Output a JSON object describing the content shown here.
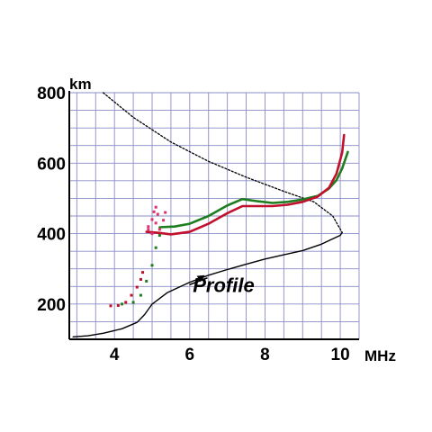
{
  "chart_data": {
    "type": "line",
    "title": "",
    "xlabel": "",
    "ylabel": "",
    "x_unit": "MHz",
    "y_unit": "km",
    "xlim": [
      2.8,
      10.5
    ],
    "ylim": [
      100,
      800
    ],
    "x_ticks": [
      4,
      6,
      8,
      10
    ],
    "y_ticks": [
      200,
      400,
      600,
      800
    ],
    "grid": true,
    "series": [
      {
        "color": "#000000",
        "style": "solid",
        "points": [
          [
            2.9,
            107
          ],
          [
            3.3,
            110
          ],
          [
            3.7,
            117
          ],
          [
            4.2,
            130
          ],
          [
            4.6,
            148
          ],
          [
            4.8,
            170
          ],
          [
            5.0,
            200
          ],
          [
            5.4,
            232
          ],
          [
            6.0,
            262
          ],
          [
            6.5,
            282
          ],
          [
            7.0,
            298
          ],
          [
            7.5,
            313
          ],
          [
            8.0,
            328
          ],
          [
            8.5,
            340
          ],
          [
            9.0,
            352
          ],
          [
            9.5,
            370
          ],
          [
            9.8,
            385
          ],
          [
            10.0,
            395
          ],
          [
            10.05,
            403
          ]
        ]
      },
      {
        "color": "#000000",
        "style": "dotted",
        "points": [
          [
            3.7,
            800
          ],
          [
            4.5,
            730
          ],
          [
            5.5,
            660
          ],
          [
            6.5,
            605
          ],
          [
            7.5,
            560
          ],
          [
            8.5,
            520
          ],
          [
            9.3,
            490
          ],
          [
            9.8,
            450
          ],
          [
            10.05,
            403
          ]
        ]
      },
      {
        "color": "#1e7d1e",
        "style": "solid",
        "points": [
          [
            5.2,
            418
          ],
          [
            5.6,
            420
          ],
          [
            6.0,
            428
          ],
          [
            6.5,
            450
          ],
          [
            7.0,
            480
          ],
          [
            7.4,
            498
          ],
          [
            7.8,
            492
          ],
          [
            8.2,
            487
          ],
          [
            8.6,
            490
          ],
          [
            9.0,
            497
          ],
          [
            9.4,
            507
          ],
          [
            9.7,
            528
          ],
          [
            9.9,
            552
          ],
          [
            10.05,
            585
          ],
          [
            10.2,
            632
          ]
        ]
      },
      {
        "color": "#1e7d1e",
        "style": "points",
        "points": [
          [
            4.2,
            200
          ],
          [
            4.5,
            205
          ],
          [
            4.7,
            225
          ],
          [
            4.85,
            265
          ],
          [
            5.0,
            310
          ],
          [
            5.1,
            360
          ],
          [
            5.2,
            395
          ]
        ]
      },
      {
        "color": "#c0102c",
        "style": "solid",
        "points": [
          [
            4.85,
            405
          ],
          [
            5.2,
            402
          ],
          [
            5.5,
            398
          ],
          [
            6.0,
            405
          ],
          [
            6.5,
            428
          ],
          [
            7.0,
            458
          ],
          [
            7.4,
            478
          ],
          [
            7.8,
            478
          ],
          [
            8.2,
            478
          ],
          [
            8.6,
            482
          ],
          [
            9.0,
            490
          ],
          [
            9.4,
            505
          ],
          [
            9.7,
            530
          ],
          [
            9.9,
            570
          ],
          [
            10.05,
            630
          ],
          [
            10.1,
            680
          ]
        ]
      },
      {
        "color": "#c0102c",
        "style": "points",
        "points": [
          [
            3.9,
            195
          ],
          [
            4.1,
            196
          ],
          [
            4.3,
            205
          ],
          [
            4.45,
            225
          ],
          [
            4.6,
            248
          ],
          [
            4.7,
            270
          ],
          [
            4.75,
            290
          ]
        ]
      },
      {
        "color": "#e0306e",
        "style": "points",
        "points": [
          [
            4.9,
            420
          ],
          [
            5.0,
            440
          ],
          [
            5.05,
            462
          ],
          [
            5.1,
            475
          ],
          [
            5.15,
            455
          ],
          [
            5.1,
            430
          ],
          [
            4.9,
            412
          ],
          [
            5.2,
            412
          ],
          [
            5.3,
            438
          ],
          [
            5.35,
            460
          ],
          [
            5.0,
            400
          ]
        ]
      }
    ],
    "annotations": [
      {
        "text": "Profile",
        "at": [
          6.9,
          255
        ],
        "arrow_to": [
          6.4,
          282
        ]
      }
    ]
  }
}
